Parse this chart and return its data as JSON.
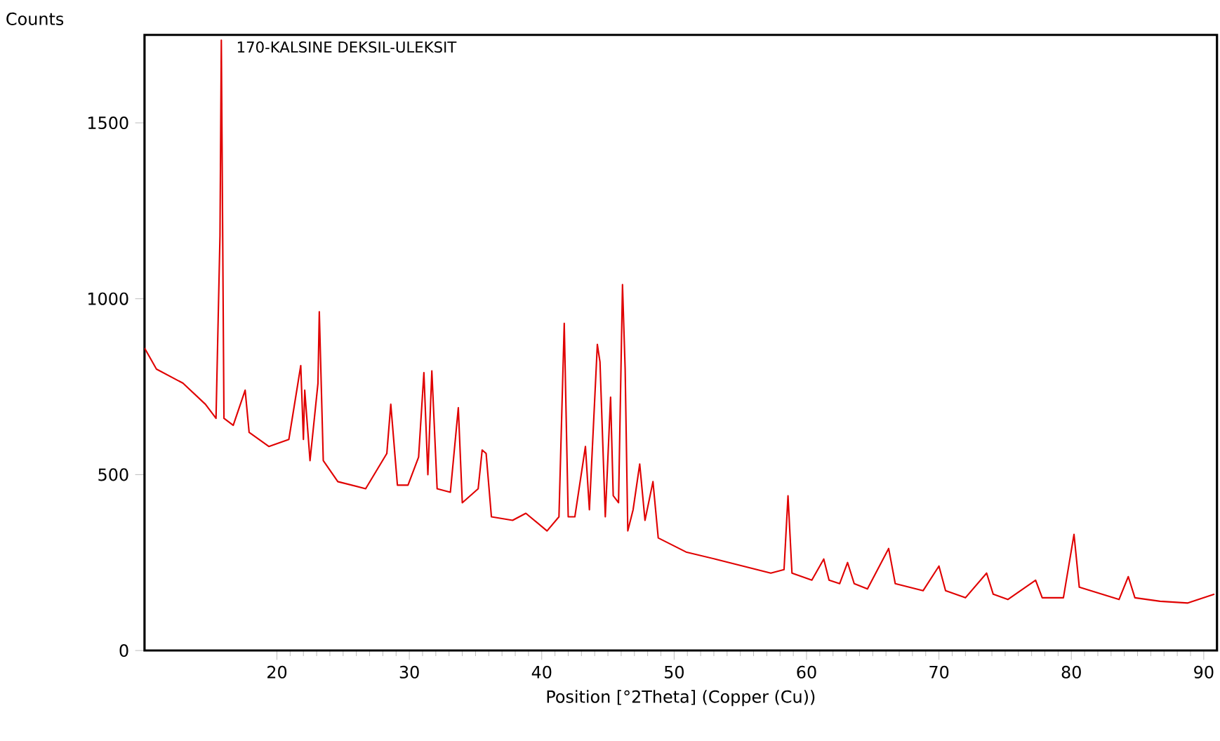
{
  "chart_data": {
    "type": "line",
    "title": "170-KALSINE DEKSIL-ULEKSIT",
    "xlabel": "Position [°2Theta] (Copper (Cu))",
    "ylabel": "Counts",
    "xlim": [
      10,
      91
    ],
    "ylim": [
      0,
      1750
    ],
    "xticks": [
      20,
      30,
      40,
      50,
      60,
      70,
      80,
      90
    ],
    "yticks": [
      0,
      500,
      1000,
      1500
    ],
    "grid": false,
    "marker": "none",
    "line_style": "solid",
    "series": [
      {
        "color": "#e00000",
        "x": [
          10.0,
          10.9,
          12.9,
          14.6,
          15.4,
          15.7,
          15.8,
          16.0,
          16.7,
          17.6,
          17.9,
          19.4,
          20.9,
          21.8,
          22.0,
          22.1,
          22.5,
          23.1,
          23.2,
          23.5,
          24.6,
          26.7,
          28.3,
          28.6,
          29.1,
          29.9,
          30.7,
          31.1,
          31.4,
          31.7,
          32.1,
          33.1,
          33.7,
          34.0,
          35.2,
          35.5,
          35.8,
          36.2,
          37.8,
          38.8,
          40.4,
          41.3,
          41.7,
          42.0,
          42.5,
          43.3,
          43.6,
          44.2,
          44.4,
          44.8,
          45.2,
          45.4,
          45.8,
          46.1,
          46.3,
          46.5,
          46.9,
          47.4,
          47.8,
          48.4,
          48.8,
          50.9,
          53.1,
          55.2,
          57.3,
          58.3,
          58.6,
          58.9,
          60.4,
          61.3,
          61.7,
          62.5,
          63.1,
          63.6,
          64.6,
          66.2,
          66.7,
          68.8,
          70.0,
          70.5,
          72.0,
          73.6,
          74.1,
          75.2,
          77.3,
          77.8,
          79.4,
          80.2,
          80.6,
          83.6,
          84.3,
          84.8,
          86.7,
          88.8,
          90.8
        ],
        "values": [
          860,
          800,
          760,
          700,
          660,
          1180,
          1735,
          660,
          640,
          740,
          620,
          580,
          600,
          810,
          600,
          740,
          540,
          760,
          963,
          540,
          480,
          460,
          560,
          700,
          470,
          470,
          550,
          790,
          500,
          795,
          460,
          450,
          690,
          420,
          460,
          570,
          560,
          380,
          370,
          390,
          340,
          380,
          930,
          380,
          380,
          580,
          400,
          870,
          820,
          380,
          720,
          440,
          420,
          1040,
          800,
          340,
          400,
          530,
          370,
          480,
          320,
          280,
          260,
          240,
          220,
          230,
          440,
          220,
          200,
          260,
          200,
          190,
          250,
          190,
          175,
          290,
          190,
          170,
          240,
          170,
          150,
          220,
          160,
          145,
          200,
          150,
          150,
          330,
          180,
          145,
          210,
          150,
          140,
          135,
          160
        ]
      }
    ]
  }
}
